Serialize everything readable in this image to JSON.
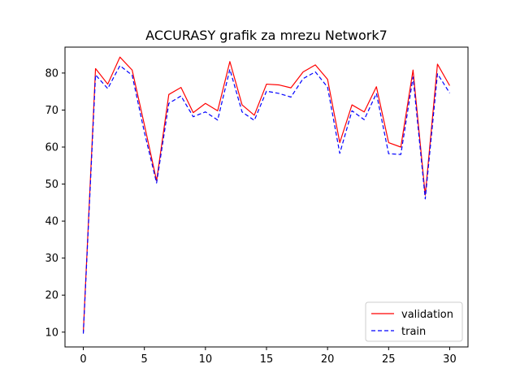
{
  "chart_data": {
    "type": "line",
    "title": "ACCURASY grafik za mrezu Network7",
    "xlabel": "",
    "ylabel": "",
    "xlim": [
      -1.5,
      31.5
    ],
    "ylim": [
      6,
      87
    ],
    "x_ticks": [
      0,
      5,
      10,
      15,
      20,
      25,
      30
    ],
    "y_ticks": [
      10,
      20,
      30,
      40,
      50,
      60,
      70,
      80
    ],
    "grid": false,
    "legend_position": "lower right",
    "x": [
      0,
      1,
      2,
      3,
      4,
      5,
      6,
      7,
      8,
      9,
      10,
      11,
      12,
      13,
      14,
      15,
      16,
      17,
      18,
      19,
      20,
      21,
      22,
      23,
      24,
      25,
      26,
      27,
      28,
      29,
      30
    ],
    "series": [
      {
        "name": "validation",
        "color": "#ff0000",
        "style": "solid",
        "values": [
          10,
          81.2,
          77,
          84.3,
          80.8,
          66,
          50.9,
          74.2,
          76.1,
          69.3,
          71.8,
          69.8,
          83.1,
          71.4,
          68.6,
          77,
          76.8,
          76,
          80.3,
          82.2,
          78.3,
          61.2,
          71.4,
          69.5,
          76.3,
          61.2,
          60,
          80.8,
          47,
          82.4,
          76.6
        ]
      },
      {
        "name": "train",
        "color": "#0000ff",
        "style": "dashed",
        "values": [
          9.6,
          79.5,
          75.8,
          82,
          79.4,
          64,
          50.3,
          71.8,
          73.8,
          68.2,
          69.5,
          67.3,
          81,
          69.5,
          67.2,
          75.1,
          74.5,
          73.5,
          78.5,
          80.3,
          76.2,
          58.3,
          69.8,
          67.4,
          74.5,
          58.2,
          58,
          78.9,
          46,
          79.8,
          74.6
        ]
      }
    ]
  }
}
